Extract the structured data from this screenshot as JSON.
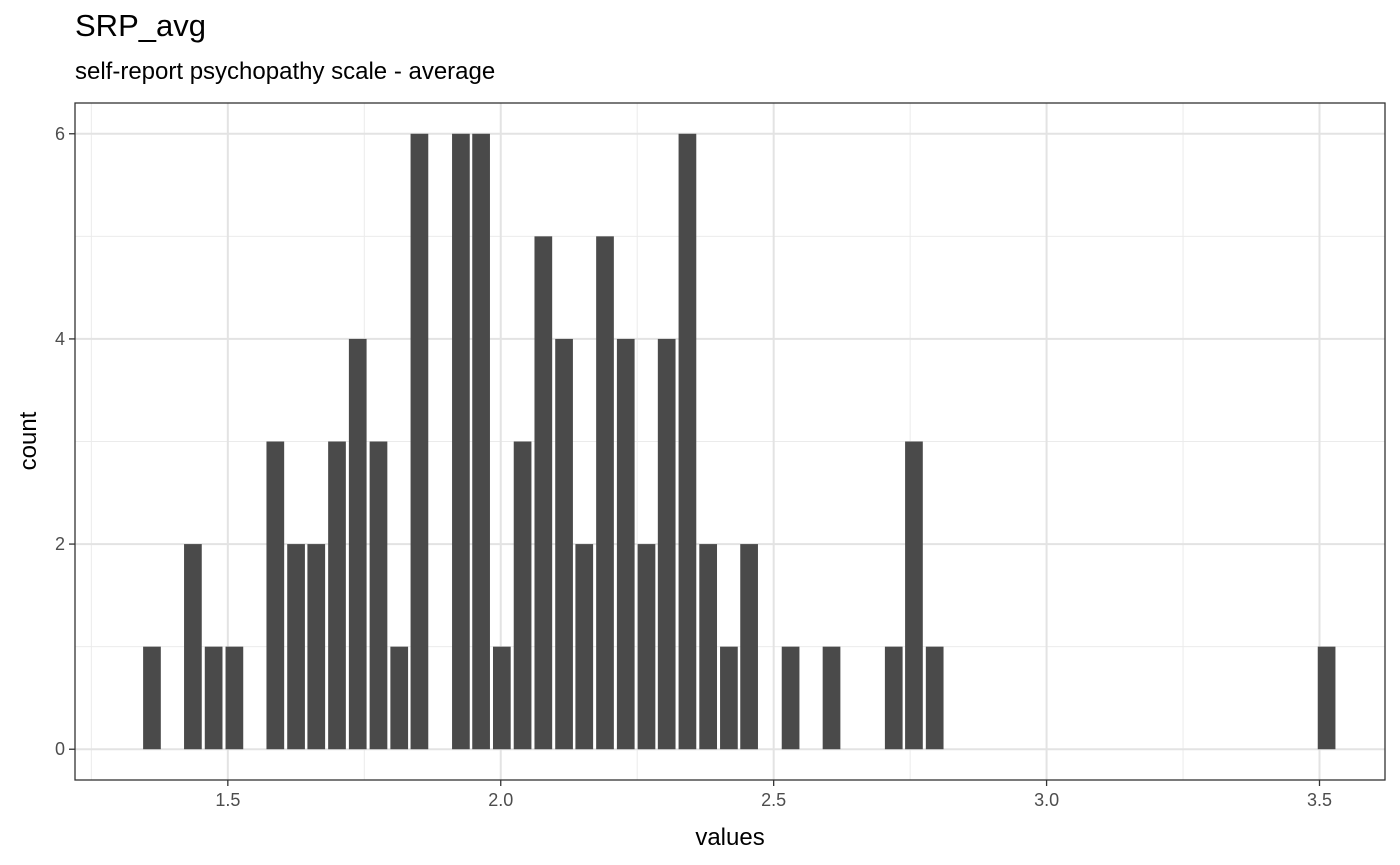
{
  "chart_data": {
    "type": "bar",
    "title": "SRP_avg",
    "subtitle": "self-report psychopathy scale - average",
    "xlabel": "values",
    "ylabel": "count",
    "xlim": [
      1.22,
      3.62
    ],
    "ylim": [
      -0.3,
      6.3
    ],
    "x_ticks": [
      "1.5",
      "2.0",
      "2.5",
      "3.0",
      "3.5"
    ],
    "y_ticks": [
      "0",
      "2",
      "4",
      "6"
    ],
    "grid": true,
    "bar_color": "#4a4a4a",
    "bin_width": 0.0361,
    "x": [
      1.361,
      1.436,
      1.474,
      1.512,
      1.587,
      1.625,
      1.662,
      1.7,
      1.738,
      1.776,
      1.814,
      1.851,
      1.927,
      1.964,
      2.002,
      2.04,
      2.078,
      2.116,
      2.153,
      2.191,
      2.229,
      2.267,
      2.304,
      2.342,
      2.38,
      2.418,
      2.455,
      2.531,
      2.606,
      2.72,
      2.757,
      2.795,
      3.513
    ],
    "values": [
      1,
      2,
      1,
      1,
      3,
      2,
      2,
      3,
      4,
      3,
      1,
      6,
      6,
      6,
      1,
      3,
      5,
      4,
      2,
      5,
      4,
      2,
      4,
      6,
      2,
      1,
      2,
      1,
      1,
      1,
      3,
      1,
      1
    ]
  }
}
